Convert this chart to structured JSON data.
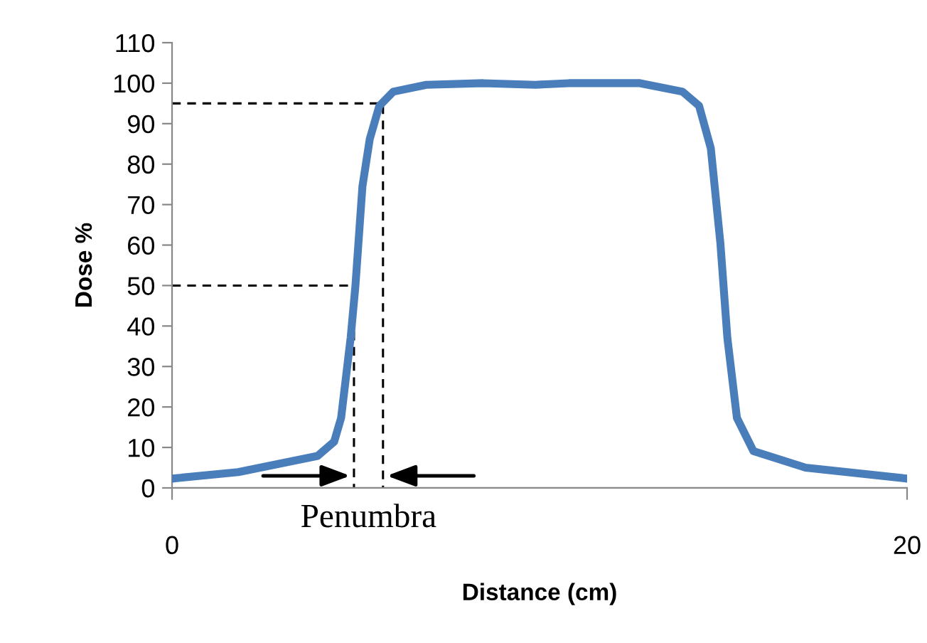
{
  "chart_data": {
    "type": "line",
    "xlabel": "Distance (cm)",
    "ylabel": "Dose %",
    "annotations": [
      "Penumbra"
    ],
    "xlim": [
      0,
      20
    ],
    "xticks": [
      0,
      20
    ],
    "ylim": [
      0,
      110
    ],
    "yticks": [
      0,
      10,
      20,
      30,
      40,
      50,
      60,
      70,
      80,
      90,
      100,
      110
    ],
    "grid": false,
    "legend": false,
    "marker": "none",
    "series": [
      {
        "color": "#4a7ebb",
        "line_style": "solid",
        "x": [
          0,
          1.8,
          3.96,
          4.41,
          4.6,
          4.86,
          4.99,
          5.18,
          5.38,
          5.64,
          6.02,
          6.92,
          8.47,
          9.89,
          10.8,
          12.73,
          13.89,
          14.34,
          14.66,
          14.92,
          15.11,
          15.37,
          15.82,
          17.24,
          20
        ],
        "values": [
          2.3,
          3.9,
          7.9,
          11.4,
          17.3,
          37.1,
          50,
          74.5,
          86.2,
          94.4,
          97.9,
          99.6,
          100,
          99.6,
          100,
          100,
          97.9,
          94.4,
          83.9,
          60.5,
          37.1,
          17.3,
          9.1,
          5.0,
          2.3
        ]
      },
      {
        "color": "#000000",
        "line_style": "dashed",
        "x": [
          0,
          4.95,
          4.95
        ],
        "values": [
          50,
          50,
          0
        ]
      },
      {
        "color": "#000000",
        "line_style": "dashed",
        "x": [
          0,
          5.74,
          5.74
        ],
        "values": [
          95,
          95,
          0
        ]
      }
    ]
  }
}
